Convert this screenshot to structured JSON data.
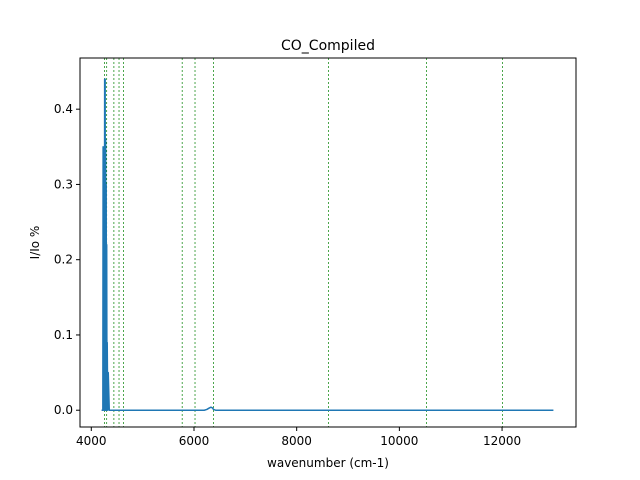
{
  "chart_data": {
    "type": "line",
    "title": "CO_Compiled",
    "xlabel": "wavenumber (cm-1)",
    "ylabel": "I/Io %",
    "xlim": [
      3780,
      13440
    ],
    "ylim": [
      -0.0223,
      0.468
    ],
    "xticks": [
      4000,
      6000,
      8000,
      10000,
      12000
    ],
    "xtick_labels": [
      "4000",
      "6000",
      "8000",
      "10000",
      "12000"
    ],
    "yticks": [
      0.0,
      0.1,
      0.2,
      0.3,
      0.4
    ],
    "ytick_labels": [
      "0.0",
      "0.1",
      "0.2",
      "0.3",
      "0.4"
    ],
    "grid": false,
    "line_color": "#1f77b4",
    "vline_color": "#008000",
    "vlines_x": [
      4260,
      4300,
      4440,
      4540,
      4630,
      5770,
      6020,
      6380,
      8620,
      10530,
      12010
    ],
    "series": [
      {
        "x": [
          4200,
          4225,
          4230,
          4235,
          4240,
          4245,
          4250,
          4255,
          4260,
          4265,
          4270,
          4275,
          4280,
          4285,
          4290,
          4295,
          4300,
          4305,
          4310,
          4320,
          4330,
          4350,
          4400,
          4500,
          5000,
          5500,
          6000,
          6200,
          6250,
          6300,
          6330,
          6360,
          6380,
          6420,
          6500,
          7000,
          8000,
          9000,
          10000,
          11000,
          12000,
          12500,
          13000
        ],
        "y": [
          0.0,
          0.0,
          0.35,
          0.02,
          0.33,
          0.0,
          0.34,
          0.0,
          0.44,
          0.0,
          0.44,
          0.0,
          0.36,
          0.0,
          0.3,
          0.0,
          0.22,
          0.0,
          0.09,
          0.0,
          0.05,
          0.0,
          0.0,
          0.0,
          0.0,
          0.0,
          0.0,
          0.0,
          0.001,
          0.003,
          0.004,
          0.003,
          0.001,
          0.0,
          0.0,
          0.0,
          0.0,
          0.0,
          0.0,
          0.0,
          0.0,
          0.0,
          0.0
        ]
      }
    ]
  }
}
